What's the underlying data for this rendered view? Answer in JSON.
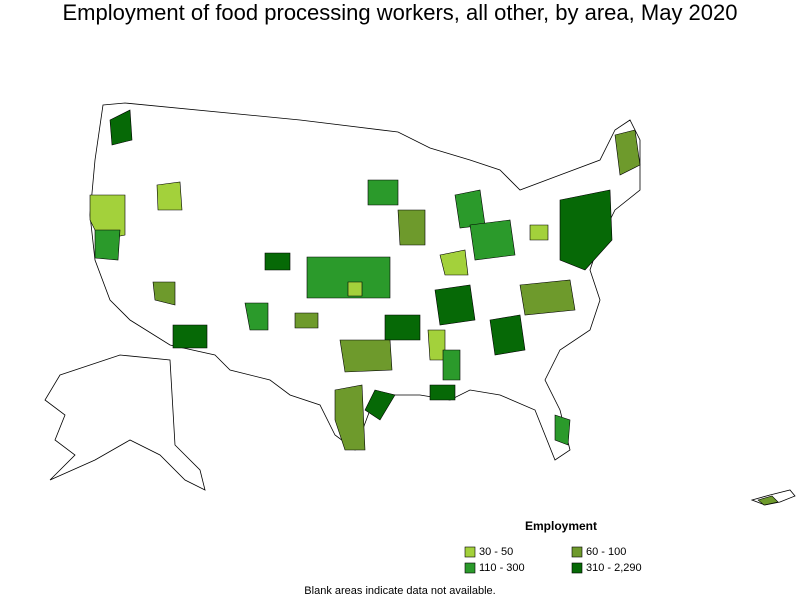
{
  "title": "Employment of food processing workers, all other, by area, May 2020",
  "legend": {
    "title": "Employment",
    "items": [
      {
        "label": "30 - 50",
        "color": "#a3d13b"
      },
      {
        "label": "60 - 100",
        "color": "#6e9a2c"
      },
      {
        "label": "110 - 300",
        "color": "#2b9a2b"
      },
      {
        "label": "310 - 2,290",
        "color": "#066906"
      }
    ]
  },
  "note": "Blank areas indicate data not available."
}
